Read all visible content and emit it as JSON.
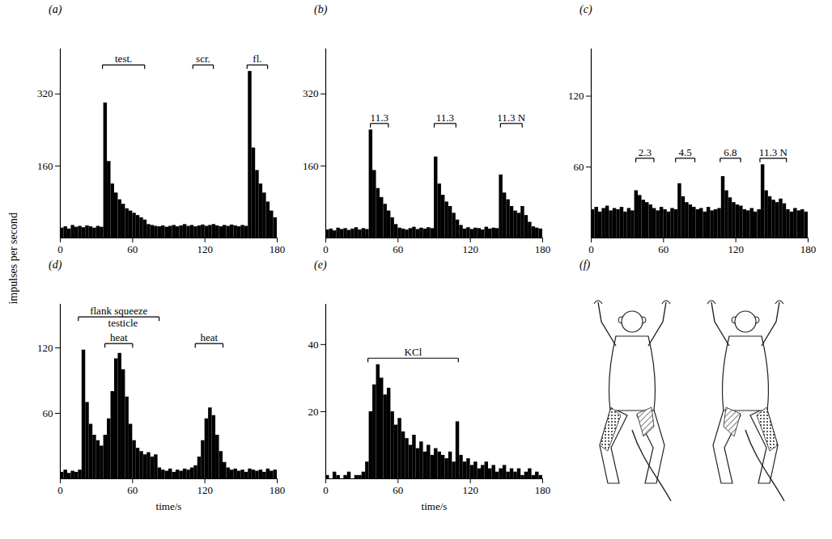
{
  "y_label": "impulses per second",
  "chart_data": [
    {
      "type": "bar",
      "title": "(a)",
      "color": "#000000",
      "bins": [
        0,
        3,
        6,
        9,
        12,
        15,
        18,
        21,
        24,
        27,
        30,
        33,
        36,
        39,
        42,
        45,
        48,
        51,
        54,
        57,
        60,
        63,
        66,
        69,
        72,
        75,
        78,
        81,
        84,
        87,
        90,
        93,
        96,
        99,
        102,
        105,
        108,
        111,
        114,
        117,
        120,
        123,
        126,
        129,
        132,
        135,
        138,
        141,
        144,
        147,
        150,
        153,
        156,
        159,
        162,
        165,
        168,
        171,
        174,
        177,
        180
      ],
      "values": [
        22,
        25,
        20,
        28,
        24,
        26,
        23,
        27,
        25,
        22,
        26,
        24,
        300,
        170,
        120,
        100,
        85,
        75,
        65,
        60,
        55,
        50,
        45,
        40,
        30,
        28,
        26,
        25,
        27,
        24,
        26,
        28,
        25,
        27,
        30,
        26,
        28,
        25,
        27,
        29,
        26,
        28,
        30,
        27,
        25,
        28,
        26,
        29,
        27,
        25,
        28,
        26,
        370,
        200,
        150,
        120,
        100,
        80,
        60,
        45
      ],
      "xlim": [
        0,
        180
      ],
      "xticks": [
        0,
        60,
        120,
        180
      ],
      "ylim": [
        0,
        420
      ],
      "yticks": [
        160,
        320
      ],
      "annotations": [
        {
          "text": "test.",
          "x": [
            35,
            70
          ]
        },
        {
          "text": "scr.",
          "x": [
            110,
            127
          ]
        },
        {
          "text": "fl.",
          "x": [
            155,
            172
          ]
        }
      ]
    },
    {
      "type": "bar",
      "title": "(b)",
      "color": "#000000",
      "bins": [
        0,
        3,
        6,
        9,
        12,
        15,
        18,
        21,
        24,
        27,
        30,
        33,
        36,
        39,
        42,
        45,
        48,
        51,
        54,
        57,
        60,
        63,
        66,
        69,
        72,
        75,
        78,
        81,
        84,
        87,
        90,
        93,
        96,
        99,
        102,
        105,
        108,
        111,
        114,
        117,
        120,
        123,
        126,
        129,
        132,
        135,
        138,
        141,
        144,
        147,
        150,
        153,
        156,
        159,
        162,
        165,
        168,
        171,
        174,
        177,
        180
      ],
      "values": [
        18,
        20,
        16,
        22,
        19,
        21,
        17,
        20,
        23,
        18,
        21,
        19,
        240,
        150,
        110,
        90,
        75,
        60,
        45,
        30,
        22,
        20,
        18,
        21,
        24,
        19,
        22,
        20,
        23,
        21,
        180,
        120,
        95,
        80,
        70,
        55,
        40,
        28,
        20,
        23,
        19,
        22,
        21,
        18,
        24,
        20,
        22,
        21,
        140,
        100,
        85,
        70,
        60,
        55,
        70,
        50,
        35,
        25,
        22,
        20
      ],
      "xlim": [
        0,
        180
      ],
      "xticks": [
        0,
        60,
        120,
        180
      ],
      "ylim": [
        0,
        420
      ],
      "yticks": [
        160,
        320
      ],
      "annotations": [
        {
          "text": "11.3",
          "x": [
            37,
            52
          ]
        },
        {
          "text": "11.3",
          "x": [
            90,
            108
          ]
        },
        {
          "text": "11.3 N",
          "x": [
            145,
            163
          ]
        }
      ]
    },
    {
      "type": "bar",
      "title": "(c)",
      "color": "#000000",
      "bins": [
        0,
        3,
        6,
        9,
        12,
        15,
        18,
        21,
        24,
        27,
        30,
        33,
        36,
        39,
        42,
        45,
        48,
        51,
        54,
        57,
        60,
        63,
        66,
        69,
        72,
        75,
        78,
        81,
        84,
        87,
        90,
        93,
        96,
        99,
        102,
        105,
        108,
        111,
        114,
        117,
        120,
        123,
        126,
        129,
        132,
        135,
        138,
        141,
        144,
        147,
        150,
        153,
        156,
        159,
        162,
        165,
        168,
        171,
        174,
        177,
        180
      ],
      "values": [
        24,
        26,
        22,
        25,
        27,
        23,
        25,
        24,
        26,
        22,
        25,
        23,
        40,
        36,
        32,
        30,
        28,
        25,
        23,
        26,
        24,
        22,
        25,
        24,
        46,
        35,
        30,
        28,
        26,
        24,
        25,
        22,
        26,
        23,
        24,
        25,
        52,
        40,
        34,
        30,
        28,
        27,
        24,
        23,
        25,
        22,
        24,
        62,
        40,
        35,
        32,
        30,
        33,
        29,
        24,
        22,
        25,
        23,
        24,
        22
      ],
      "xlim": [
        0,
        180
      ],
      "xticks": [
        0,
        60,
        120,
        180
      ],
      "ylim": [
        0,
        160
      ],
      "yticks": [
        60,
        120
      ],
      "annotations": [
        {
          "text": "2.3",
          "x": [
            37,
            52
          ]
        },
        {
          "text": "4.5",
          "x": [
            70,
            86
          ]
        },
        {
          "text": "6.8",
          "x": [
            107,
            124
          ]
        },
        {
          "text": "11.3 N",
          "x": [
            140,
            162
          ]
        }
      ]
    },
    {
      "type": "bar",
      "title": "(d)",
      "color": "#000000",
      "x_label": "time/s",
      "bins": [
        0,
        3,
        6,
        9,
        12,
        15,
        18,
        21,
        24,
        27,
        30,
        33,
        36,
        39,
        42,
        45,
        48,
        51,
        54,
        57,
        60,
        63,
        66,
        69,
        72,
        75,
        78,
        81,
        84,
        87,
        90,
        93,
        96,
        99,
        102,
        105,
        108,
        111,
        114,
        117,
        120,
        123,
        126,
        129,
        132,
        135,
        138,
        141,
        144,
        147,
        150,
        153,
        156,
        159,
        162,
        165,
        168,
        171,
        174,
        177,
        180
      ],
      "values": [
        6,
        8,
        5,
        7,
        6,
        8,
        118,
        70,
        50,
        40,
        35,
        30,
        40,
        55,
        80,
        110,
        115,
        100,
        75,
        50,
        35,
        28,
        25,
        22,
        24,
        20,
        22,
        10,
        8,
        7,
        9,
        6,
        8,
        7,
        9,
        8,
        10,
        12,
        20,
        35,
        55,
        65,
        58,
        40,
        25,
        15,
        10,
        8,
        9,
        7,
        8,
        6,
        9,
        8,
        7,
        8,
        6,
        9,
        7,
        8
      ],
      "xlim": [
        0,
        180
      ],
      "xticks": [
        0,
        60,
        120,
        180
      ],
      "ylim": [
        0,
        160
      ],
      "yticks": [
        60,
        120
      ],
      "annotations": [
        {
          "text": "heat",
          "x": [
            37,
            60
          ]
        },
        {
          "text": "heat",
          "x": [
            112,
            135
          ]
        },
        {
          "text": "testicle",
          "x": 52
        },
        {
          "text": "flank squeeze",
          "x": [
            15,
            82
          ]
        }
      ]
    },
    {
      "type": "bar",
      "title": "(e)",
      "color": "#000000",
      "x_label": "time/s",
      "bins": [
        0,
        3,
        6,
        9,
        12,
        15,
        18,
        21,
        24,
        27,
        30,
        33,
        36,
        39,
        42,
        45,
        48,
        51,
        54,
        57,
        60,
        63,
        66,
        69,
        72,
        75,
        78,
        81,
        84,
        87,
        90,
        93,
        96,
        99,
        102,
        105,
        108,
        111,
        114,
        117,
        120,
        123,
        126,
        129,
        132,
        135,
        138,
        141,
        144,
        147,
        150,
        153,
        156,
        159,
        162,
        165,
        168,
        171,
        174,
        177,
        180
      ],
      "values": [
        1,
        0,
        2,
        1,
        0,
        1,
        2,
        0,
        1,
        1,
        2,
        5,
        20,
        28,
        34,
        30,
        25,
        27,
        20,
        16,
        18,
        14,
        12,
        10,
        13,
        9,
        11,
        8,
        10,
        7,
        9,
        8,
        7,
        6,
        8,
        5,
        17,
        7,
        5,
        6,
        4,
        5,
        3,
        4,
        5,
        3,
        4,
        2,
        3,
        4,
        2,
        3,
        2,
        3,
        1,
        2,
        3,
        1,
        2,
        1
      ],
      "xlim": [
        0,
        180
      ],
      "xticks": [
        0,
        60,
        120,
        180
      ],
      "ylim": [
        0,
        52
      ],
      "yticks": [
        20,
        40
      ],
      "annotations": [
        {
          "text": "KCl",
          "x": [
            35,
            110
          ]
        }
      ]
    }
  ],
  "diagram": {
    "title": "(f)"
  }
}
